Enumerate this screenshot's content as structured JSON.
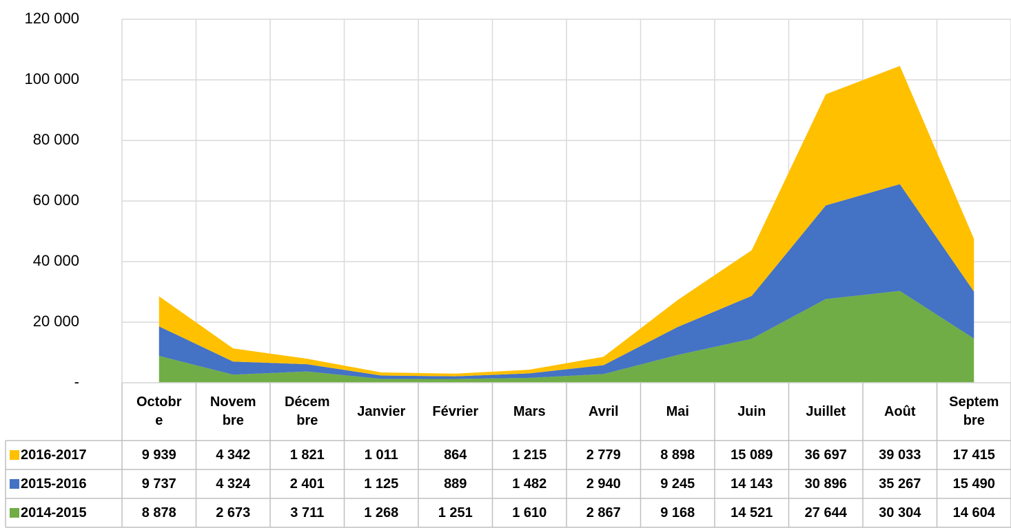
{
  "chart_data": {
    "type": "stacked_area",
    "categories": [
      "Octobre",
      "Novembre",
      "Décembre",
      "Janvier",
      "Février",
      "Mars",
      "Avril",
      "Mai",
      "Juin",
      "Juillet",
      "Août",
      "Septembre"
    ],
    "series": [
      {
        "name": "2016-2017",
        "color": "#FFC000",
        "values": [
          9939,
          4342,
          1821,
          1011,
          864,
          1215,
          2779,
          8898,
          15089,
          36697,
          39033,
          17415
        ],
        "value_labels": [
          "9 939",
          "4 342",
          "1 821",
          "1 011",
          "864",
          "1 215",
          "2 779",
          "8 898",
          "15 089",
          "36 697",
          "39 033",
          "17 415"
        ]
      },
      {
        "name": "2015-2016",
        "color": "#4472C4",
        "values": [
          9737,
          4324,
          2401,
          1125,
          889,
          1482,
          2940,
          9245,
          14143,
          30896,
          35267,
          15490
        ],
        "value_labels": [
          "9 737",
          "4 324",
          "2 401",
          "1 125",
          "889",
          "1 482",
          "2 940",
          "9 245",
          "14 143",
          "30 896",
          "35 267",
          "15 490"
        ]
      },
      {
        "name": "2014-2015",
        "color": "#70AD47",
        "values": [
          8878,
          2673,
          3711,
          1268,
          1251,
          1610,
          2867,
          9168,
          14521,
          27644,
          30304,
          14604
        ],
        "value_labels": [
          "8 878",
          "2 673",
          "3 711",
          "1 268",
          "1 251",
          "1 610",
          "2 867",
          "9 168",
          "14 521",
          "27 644",
          "30 304",
          "14 604"
        ]
      }
    ],
    "ylim": [
      0,
      120000
    ],
    "yticks": [
      {
        "value": 0,
        "label": "-"
      },
      {
        "value": 20000,
        "label": "20 000"
      },
      {
        "value": 40000,
        "label": "40 000"
      },
      {
        "value": 60000,
        "label": "60 000"
      },
      {
        "value": 80000,
        "label": "80 000"
      },
      {
        "value": 100000,
        "label": "100 000"
      },
      {
        "value": 120000,
        "label": "120 000"
      }
    ],
    "grid": true
  }
}
